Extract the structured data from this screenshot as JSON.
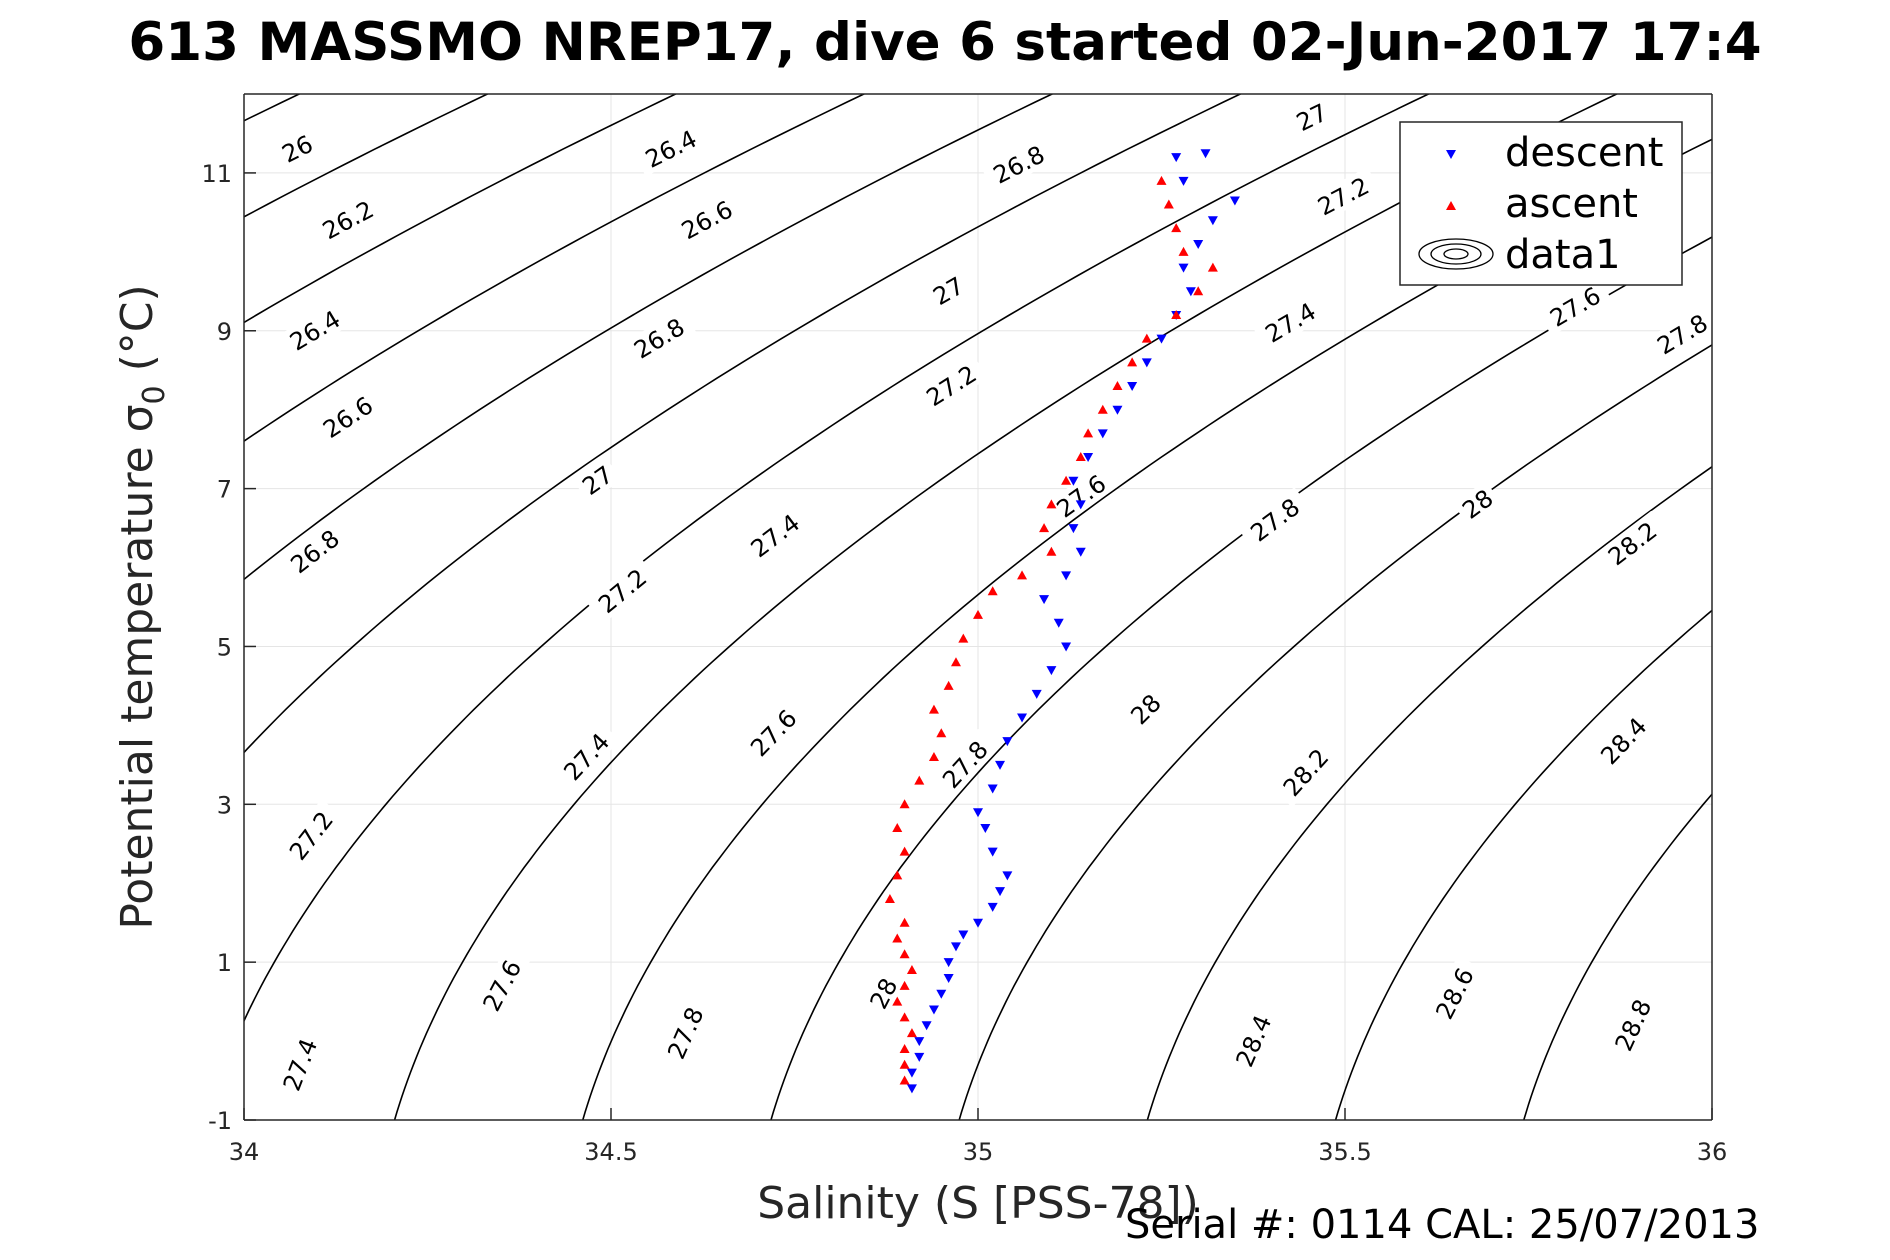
{
  "chart_data": {
    "type": "scatter",
    "title": "613 MASSMO NREP17, dive 6 started 02-Jun-2017 17:4",
    "xlabel": "Salinity (S [PSS-78])",
    "ylabel_main": "Potential temperature ",
    "ylabel_sym": "σ",
    "ylabel_sub": "0",
    "ylabel_unit": " (°C)",
    "footer": "Serial #: 0114  CAL: 25/07/2013",
    "xlim": [
      34,
      36
    ],
    "ylim": [
      -1,
      12
    ],
    "xticks": [
      34,
      34.5,
      35,
      35.5,
      36
    ],
    "xtick_labels": [
      "34",
      "34.5",
      "35",
      "35.5",
      "36"
    ],
    "yticks": [
      -1,
      1,
      3,
      5,
      7,
      9,
      11
    ],
    "ytick_labels": [
      "-1",
      "1",
      "3",
      "5",
      "7",
      "9",
      "11"
    ],
    "grid": true,
    "legend_position": "top-right",
    "legend": [
      "descent",
      "ascent",
      "data1"
    ],
    "colors": {
      "descent": "#0000ff",
      "ascent": "#ff0000",
      "contour": "#000000",
      "grid": "#e5e5e5"
    },
    "contour_levels": [
      26,
      26.2,
      26.4,
      26.6,
      26.8,
      27,
      27.2,
      27.4,
      27.6,
      27.8,
      28,
      28.2,
      28.4,
      28.6,
      28.8
    ],
    "contour_labels": [
      {
        "text": "26",
        "s": 34.073,
        "t": 11.3
      },
      {
        "text": "26.2",
        "s": 34.142,
        "t": 10.4
      },
      {
        "text": "26.4",
        "s": 34.097,
        "t": 9.0
      },
      {
        "text": "26.6",
        "s": 34.142,
        "t": 7.9
      },
      {
        "text": "26.8",
        "s": 34.097,
        "t": 6.2
      },
      {
        "text": "27",
        "s": 34.482,
        "t": 7.1
      },
      {
        "text": "27.2",
        "s": 34.092,
        "t": 2.6
      },
      {
        "text": "27.4",
        "s": 34.077,
        "t": -0.3
      },
      {
        "text": "26.4",
        "s": 34.582,
        "t": 11.3
      },
      {
        "text": "26.6",
        "s": 34.631,
        "t": 10.4
      },
      {
        "text": "26.8",
        "s": 34.566,
        "t": 8.9
      },
      {
        "text": "27.2",
        "s": 34.516,
        "t": 5.7
      },
      {
        "text": "27.4",
        "s": 34.467,
        "t": 3.6
      },
      {
        "text": "27.6",
        "s": 34.352,
        "t": 0.7
      },
      {
        "text": "26.8",
        "s": 35.056,
        "t": 11.1
      },
      {
        "text": "27",
        "s": 34.96,
        "t": 9.5
      },
      {
        "text": "27.2",
        "s": 34.964,
        "t": 8.3
      },
      {
        "text": "27.4",
        "s": 34.724,
        "t": 6.4
      },
      {
        "text": "27.6",
        "s": 34.722,
        "t": 3.9
      },
      {
        "text": "27.8",
        "s": 34.602,
        "t": 0.1
      },
      {
        "text": "27.8",
        "s": 34.983,
        "t": 3.5
      },
      {
        "text": "28",
        "s": 34.872,
        "t": 0.6
      },
      {
        "text": "27.6",
        "s": 35.141,
        "t": 6.9
      },
      {
        "text": "27",
        "s": 35.455,
        "t": 11.7
      },
      {
        "text": "27.2",
        "s": 35.498,
        "t": 10.7
      },
      {
        "text": "27.4",
        "s": 35.426,
        "t": 9.1
      },
      {
        "text": "27.8",
        "s": 35.405,
        "t": 6.6
      },
      {
        "text": "28",
        "s": 35.229,
        "t": 4.2
      },
      {
        "text": "28.2",
        "s": 35.447,
        "t": 3.4
      },
      {
        "text": "28.4",
        "s": 35.376,
        "t": 0.0
      },
      {
        "text": "27.6",
        "s": 35.814,
        "t": 9.3
      },
      {
        "text": "27.8",
        "s": 35.96,
        "t": 8.95
      },
      {
        "text": "28",
        "s": 35.681,
        "t": 6.8
      },
      {
        "text": "28.2",
        "s": 35.892,
        "t": 6.3
      },
      {
        "text": "28.4",
        "s": 35.88,
        "t": 3.8
      },
      {
        "text": "28.6",
        "s": 35.65,
        "t": 0.6
      },
      {
        "text": "28.8",
        "s": 35.893,
        "t": 0.2
      }
    ],
    "series": [
      {
        "name": "descent",
        "marker": "triangle-down",
        "points": [
          [
            34.91,
            -0.6
          ],
          [
            34.91,
            -0.4
          ],
          [
            34.92,
            -0.2
          ],
          [
            34.92,
            0.0
          ],
          [
            34.93,
            0.2
          ],
          [
            34.94,
            0.4
          ],
          [
            34.95,
            0.6
          ],
          [
            34.96,
            0.8
          ],
          [
            34.96,
            1.0
          ],
          [
            34.97,
            1.2
          ],
          [
            34.98,
            1.35
          ],
          [
            35.0,
            1.5
          ],
          [
            35.02,
            1.7
          ],
          [
            35.03,
            1.9
          ],
          [
            35.04,
            2.1
          ],
          [
            35.02,
            2.4
          ],
          [
            35.01,
            2.7
          ],
          [
            35.0,
            2.9
          ],
          [
            35.02,
            3.2
          ],
          [
            35.03,
            3.5
          ],
          [
            35.04,
            3.8
          ],
          [
            35.06,
            4.1
          ],
          [
            35.08,
            4.4
          ],
          [
            35.1,
            4.7
          ],
          [
            35.12,
            5.0
          ],
          [
            35.11,
            5.3
          ],
          [
            35.09,
            5.6
          ],
          [
            35.12,
            5.9
          ],
          [
            35.14,
            6.2
          ],
          [
            35.13,
            6.5
          ],
          [
            35.14,
            6.8
          ],
          [
            35.13,
            7.1
          ],
          [
            35.15,
            7.4
          ],
          [
            35.17,
            7.7
          ],
          [
            35.19,
            8.0
          ],
          [
            35.21,
            8.3
          ],
          [
            35.23,
            8.6
          ],
          [
            35.25,
            8.9
          ],
          [
            35.27,
            9.2
          ],
          [
            35.29,
            9.5
          ],
          [
            35.28,
            9.8
          ],
          [
            35.3,
            10.1
          ],
          [
            35.32,
            10.4
          ],
          [
            35.35,
            10.65
          ],
          [
            35.28,
            10.9
          ],
          [
            35.27,
            11.2
          ],
          [
            35.31,
            11.25
          ]
        ]
      },
      {
        "name": "ascent",
        "marker": "triangle-up",
        "points": [
          [
            34.9,
            -0.5
          ],
          [
            34.9,
            -0.3
          ],
          [
            34.9,
            -0.1
          ],
          [
            34.91,
            0.1
          ],
          [
            34.9,
            0.3
          ],
          [
            34.89,
            0.5
          ],
          [
            34.9,
            0.7
          ],
          [
            34.91,
            0.9
          ],
          [
            34.9,
            1.1
          ],
          [
            34.89,
            1.3
          ],
          [
            34.9,
            1.5
          ],
          [
            34.88,
            1.8
          ],
          [
            34.89,
            2.1
          ],
          [
            34.9,
            2.4
          ],
          [
            34.89,
            2.7
          ],
          [
            34.9,
            3.0
          ],
          [
            34.92,
            3.3
          ],
          [
            34.94,
            3.6
          ],
          [
            34.95,
            3.9
          ],
          [
            34.94,
            4.2
          ],
          [
            34.96,
            4.5
          ],
          [
            34.97,
            4.8
          ],
          [
            34.98,
            5.1
          ],
          [
            35.0,
            5.4
          ],
          [
            35.02,
            5.7
          ],
          [
            35.06,
            5.9
          ],
          [
            35.1,
            6.2
          ],
          [
            35.09,
            6.5
          ],
          [
            35.1,
            6.8
          ],
          [
            35.12,
            7.1
          ],
          [
            35.14,
            7.4
          ],
          [
            35.15,
            7.7
          ],
          [
            35.17,
            8.0
          ],
          [
            35.19,
            8.3
          ],
          [
            35.21,
            8.6
          ],
          [
            35.23,
            8.9
          ],
          [
            35.27,
            9.2
          ],
          [
            35.3,
            9.5
          ],
          [
            35.32,
            9.8
          ],
          [
            35.28,
            10.0
          ],
          [
            35.27,
            10.3
          ],
          [
            35.26,
            10.6
          ],
          [
            35.25,
            10.9
          ]
        ]
      },
      {
        "name": "data1",
        "marker": "contour",
        "points": []
      }
    ]
  }
}
